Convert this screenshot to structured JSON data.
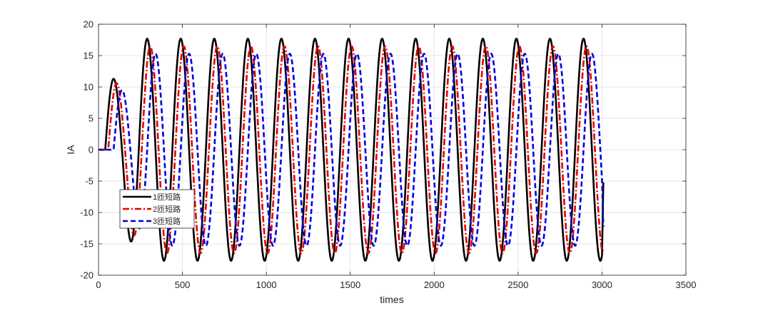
{
  "chart_data": {
    "type": "line",
    "xlabel": "times",
    "ylabel": "IA",
    "xlim": [
      0,
      3500
    ],
    "ylim": [
      -20,
      20
    ],
    "xticks": [
      0,
      500,
      1000,
      1500,
      2000,
      2500,
      3000,
      3500
    ],
    "yticks": [
      -20,
      -15,
      -10,
      -5,
      0,
      5,
      10,
      15,
      20
    ],
    "grid": true,
    "legend_position": "lower-left",
    "series": [
      {
        "name": "1匝短路",
        "color": "#000000",
        "style": "solid",
        "amplitude": 17.7,
        "first_peak": 11.3,
        "onset": 40,
        "period": 200,
        "end": 3000,
        "end_value": -5.2
      },
      {
        "name": "2匝短路",
        "color": "#e60000",
        "style": "dashdot",
        "amplitude": 16.5,
        "first_peak": 10.6,
        "onset": 58,
        "period": 200,
        "end": 3000,
        "end_value": -16.2
      },
      {
        "name": "3匝短路",
        "color": "#0000e6",
        "style": "dash",
        "amplitude": 15.3,
        "first_peak": 9.5,
        "onset": 90,
        "period": 200,
        "end": 3000,
        "end_value": -12.3
      }
    ]
  }
}
